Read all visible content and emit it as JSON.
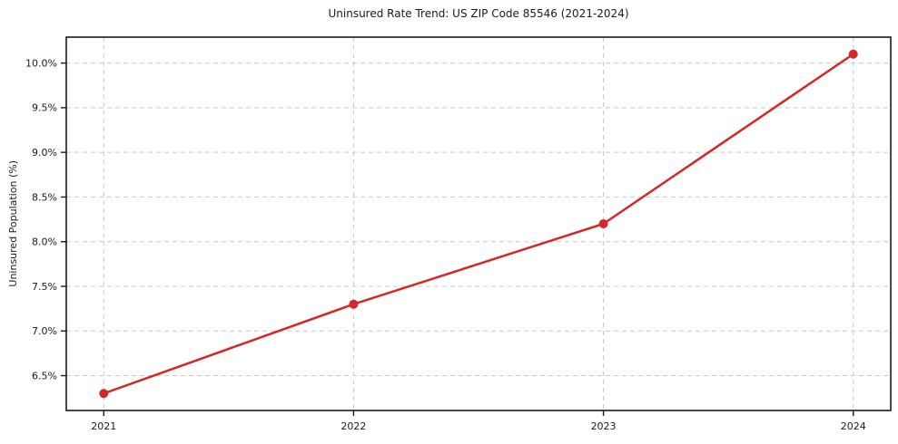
{
  "chart_data": {
    "type": "line",
    "title": "Uninsured Rate Trend: US ZIP Code 85546 (2021-2024)",
    "xlabel": "",
    "ylabel": "Uninsured Population (%)",
    "x": [
      2021,
      2022,
      2023,
      2024
    ],
    "values": [
      6.3,
      7.3,
      8.2,
      10.1
    ],
    "xticks": [
      2021,
      2022,
      2023,
      2024
    ],
    "xtick_labels": [
      "2021",
      "2022",
      "2023",
      "2024"
    ],
    "yticks": [
      6.5,
      7.0,
      7.5,
      8.0,
      8.5,
      9.0,
      9.5,
      10.0
    ],
    "ytick_labels": [
      "6.5%",
      "7.0%",
      "7.5%",
      "8.0%",
      "8.5%",
      "9.0%",
      "9.5%",
      "10.0%"
    ],
    "xlim": [
      2020.85,
      2024.15
    ],
    "ylim": [
      6.11,
      10.29
    ],
    "grid": true,
    "grid_style": "dashed",
    "legend": false,
    "line_color": "#d62728",
    "marker": "circle",
    "grid_color": "#c9c9c9",
    "spine_color": "#1a1a1a",
    "text_color": "#1a1a1a",
    "background": "#ffffff"
  }
}
